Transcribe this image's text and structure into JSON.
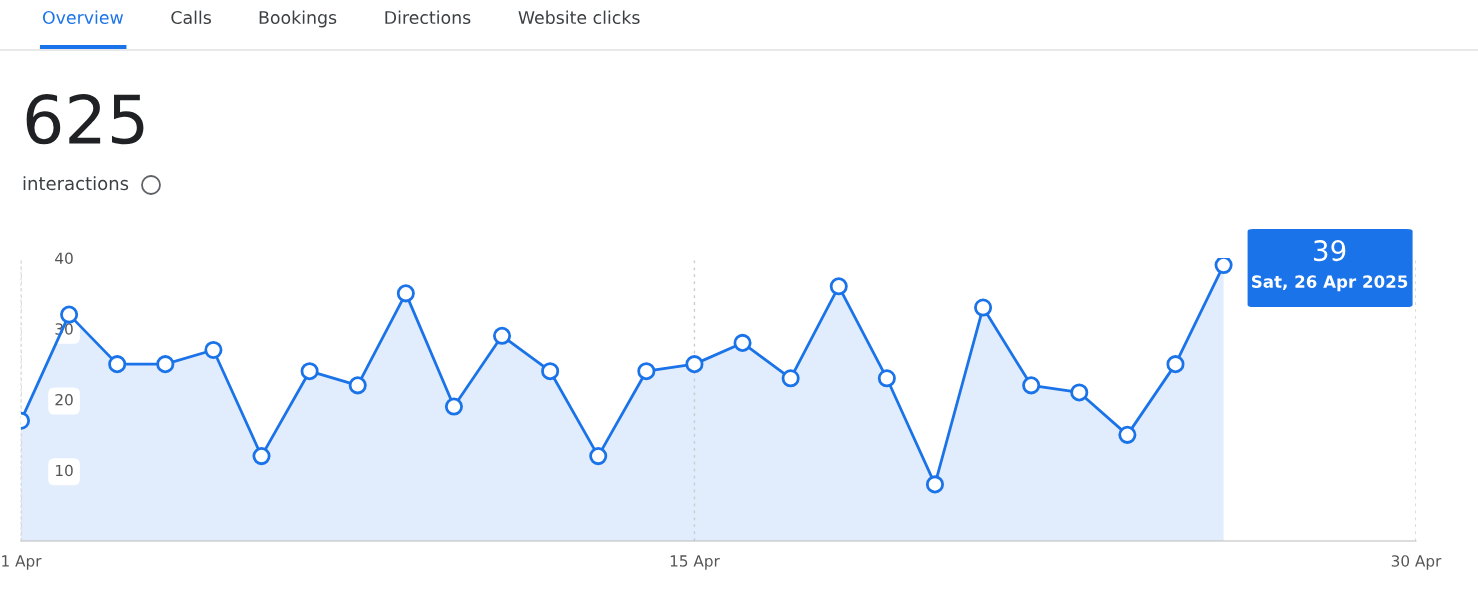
{
  "chart_data": {
    "type": "area",
    "title": "625",
    "subtitle": "interactions",
    "annotations": [
      "Overview",
      "Calls",
      "Bookings",
      "Directions",
      "Website clicks",
      "39",
      "Sat, 26 Apr 2025"
    ],
    "x": [
      "2025-04-01",
      "2025-04-02",
      "2025-04-03",
      "2025-04-04",
      "2025-04-05",
      "2025-04-06",
      "2025-04-07",
      "2025-04-08",
      "2025-04-09",
      "2025-04-10",
      "2025-04-11",
      "2025-04-12",
      "2025-04-13",
      "2025-04-14",
      "2025-04-15",
      "2025-04-16",
      "2025-04-17",
      "2025-04-18",
      "2025-04-19",
      "2025-04-20",
      "2025-04-21",
      "2025-04-22",
      "2025-04-23",
      "2025-04-24",
      "2025-04-25",
      "2025-04-26"
    ],
    "series": [
      {
        "color": "#1a73e8",
        "values": [
          17,
          32,
          25,
          25,
          27,
          12,
          24,
          22,
          35,
          19,
          29,
          24,
          12,
          24,
          25,
          28,
          23,
          36,
          23,
          8,
          33,
          22,
          21,
          15,
          25,
          39
        ]
      }
    ],
    "xlim": [
      "2025-04-01",
      "2025-04-30"
    ],
    "xticks": [
      {
        "value": "2025-04-01",
        "label": "1 Apr"
      },
      {
        "value": "2025-04-15",
        "label": "15 Apr"
      },
      {
        "value": "2025-04-30",
        "label": "30 Apr"
      }
    ],
    "ylim": [
      0,
      40
    ],
    "yticks": [
      10,
      20,
      30,
      40
    ],
    "grid": "x",
    "marker": "circle",
    "line_style": "solid"
  }
}
